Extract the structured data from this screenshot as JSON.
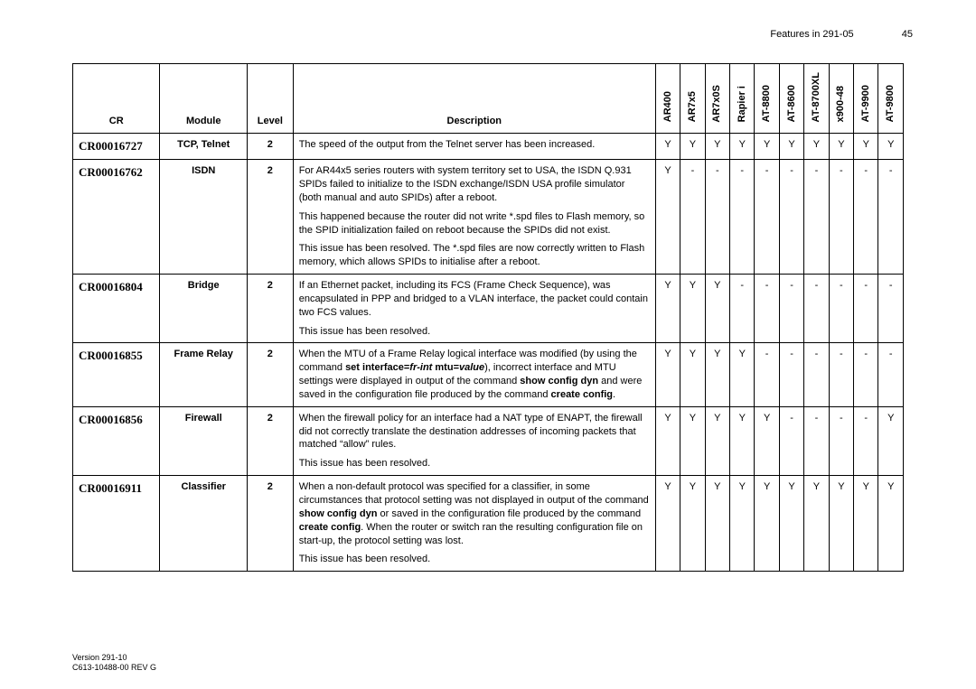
{
  "header": {
    "title": "Features in 291-05",
    "page_num": "45"
  },
  "columns": {
    "cr": "CR",
    "module": "Module",
    "level": "Level",
    "description": "Description",
    "platforms": [
      "AR400",
      "AR7x5",
      "AR7x0S",
      "Rapier i",
      "AT-8800",
      "AT-8600",
      "AT-8700XL",
      "x900-48",
      "AT-9900",
      "AT-9800"
    ]
  },
  "rows": [
    {
      "cr": "CR00016727",
      "module": "TCP, Telnet",
      "level": "2",
      "desc": [
        {
          "text": "The speed of the output from the Telnet server has been increased."
        }
      ],
      "plat": [
        "Y",
        "Y",
        "Y",
        "Y",
        "Y",
        "Y",
        "Y",
        "Y",
        "Y",
        "Y"
      ]
    },
    {
      "cr": "CR00016762",
      "module": "ISDN",
      "level": "2",
      "desc": [
        {
          "text": "For AR44x5 series routers with system territory set to USA, the ISDN Q.931 SPIDs failed to initialize to the ISDN exchange/ISDN USA profile simulator (both manual and auto SPIDs) after a reboot."
        },
        {
          "text": "This happened because the router did not write *.spd files to Flash memory, so the SPID initialization failed on reboot because the SPIDs did not exist."
        },
        {
          "text": "This issue has been resolved. The *.spd files are now correctly written to Flash memory, which allows SPIDs to initialise after a reboot."
        }
      ],
      "plat": [
        "Y",
        "-",
        "-",
        "-",
        "-",
        "-",
        "-",
        "-",
        "-",
        "-"
      ]
    },
    {
      "cr": "CR00016804",
      "module": "Bridge",
      "level": "2",
      "desc": [
        {
          "text": "If an Ethernet packet, including its FCS (Frame Check Sequence), was encapsulated in PPP and bridged to a VLAN interface, the packet could contain two FCS values."
        },
        {
          "text": "This issue has been resolved."
        }
      ],
      "plat": [
        "Y",
        "Y",
        "Y",
        "-",
        "-",
        "-",
        "-",
        "-",
        "-",
        "-"
      ]
    },
    {
      "cr": "CR00016855",
      "module": "Frame Relay",
      "level": "2",
      "desc": [
        {
          "html": "When the MTU of a Frame Relay logical interface was modified (by using the command <b>set interface=</b><span class=\"bi\">fr-int</span> <b>mtu=</b><span class=\"bi\">value</span>), incorrect interface and MTU settings were displayed in output of the command <b>show config dyn</b> and were saved in the configuration file produced by the command <b>create config</b>."
        }
      ],
      "plat": [
        "Y",
        "Y",
        "Y",
        "Y",
        "-",
        "-",
        "-",
        "-",
        "-",
        "-"
      ]
    },
    {
      "cr": "CR00016856",
      "module": "Firewall",
      "level": "2",
      "desc": [
        {
          "text": "When the firewall policy for an interface had a NAT type of ENAPT, the firewall did not correctly translate the destination addresses of incoming packets that matched “allow” rules."
        },
        {
          "text": "This issue has been resolved."
        }
      ],
      "plat": [
        "Y",
        "Y",
        "Y",
        "Y",
        "Y",
        "-",
        "-",
        "-",
        "-",
        "Y"
      ]
    },
    {
      "cr": "CR00016911",
      "module": "Classifier",
      "level": "2",
      "desc": [
        {
          "html": "When a non-default protocol was specified for a classifier, in some circumstances that protocol setting was not displayed in output of the command <b>show config dyn</b> or saved in the configuration file produced by the command <b>create config</b>. When the router or switch ran the resulting configuration file on start-up, the protocol setting was lost."
        },
        {
          "text": "This issue has been resolved."
        }
      ],
      "plat": [
        "Y",
        "Y",
        "Y",
        "Y",
        "Y",
        "Y",
        "Y",
        "Y",
        "Y",
        "Y"
      ]
    }
  ],
  "footer": {
    "line1": "Version 291-10",
    "line2": "C613-10488-00 REV G"
  }
}
